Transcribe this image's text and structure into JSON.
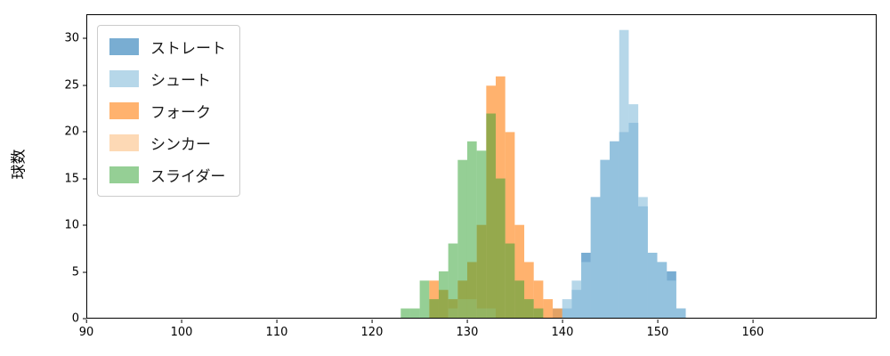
{
  "figure": {
    "background": "#ffffff"
  },
  "chart_data": {
    "type": "bar",
    "subtype": "overlaid-histogram",
    "title": "",
    "xlabel": "",
    "ylabel": "球数",
    "xlim": [
      90,
      173
    ],
    "ylim": [
      0,
      32.6
    ],
    "x_ticks": [
      90,
      100,
      110,
      120,
      130,
      140,
      150,
      160
    ],
    "y_ticks": [
      0,
      5,
      10,
      15,
      20,
      25,
      30
    ],
    "bin_width": 1,
    "grid": "off",
    "legend_position": "upper-left",
    "series": [
      {
        "name": "ストレート",
        "color": "#1f77b4",
        "alpha": 0.6,
        "bin_start": 140,
        "counts": [
          1,
          3,
          7,
          13,
          17,
          19,
          20,
          21,
          12,
          7,
          6,
          5,
          1
        ]
      },
      {
        "name": "シュート",
        "color": "#9ecae1",
        "alpha": 0.75,
        "bin_start": 139,
        "counts": [
          1,
          2,
          4,
          6,
          13,
          17,
          19,
          31,
          23,
          13,
          7,
          6,
          4,
          1
        ]
      },
      {
        "name": "フォーク",
        "color": "#ff7f0e",
        "alpha": 0.6,
        "bin_start": 126,
        "counts": [
          4,
          3,
          2,
          4,
          6,
          10,
          25,
          26,
          20,
          10,
          6,
          4,
          2,
          1
        ]
      },
      {
        "name": "シンカー",
        "color": "#fdd0a2",
        "alpha": 0.8,
        "bin_start": 128,
        "counts": [
          1,
          2,
          2,
          1,
          1
        ]
      },
      {
        "name": "スライダー",
        "color": "#2ca02c",
        "alpha": 0.5,
        "bin_start": 123,
        "counts": [
          1,
          1,
          4,
          2,
          5,
          8,
          17,
          19,
          18,
          22,
          15,
          8,
          4,
          2,
          1
        ]
      }
    ]
  }
}
